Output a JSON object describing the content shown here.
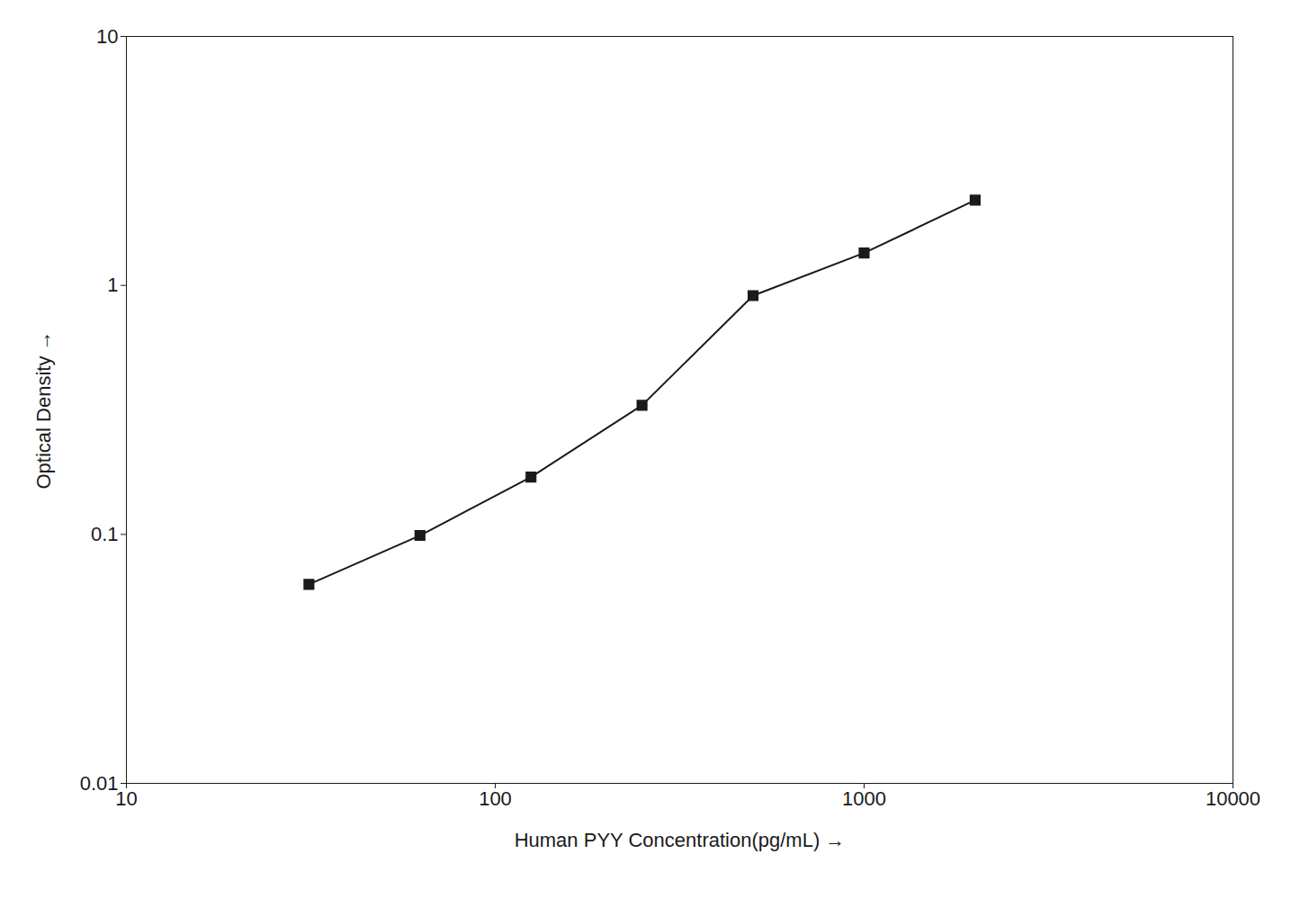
{
  "chart_data": {
    "type": "line",
    "x": [
      31.25,
      62.5,
      125,
      250,
      500,
      1000,
      2000
    ],
    "values": [
      0.063,
      0.099,
      0.17,
      0.33,
      0.91,
      1.35,
      2.2
    ],
    "xlabel": "Human PYY Concentration(pg/mL)",
    "ylabel": "Optical Density",
    "xlim": [
      10,
      10000
    ],
    "ylim": [
      0.01,
      10
    ],
    "xticks": [
      10,
      100,
      1000,
      10000
    ],
    "yticks": [
      0.01,
      0.1,
      1,
      10
    ],
    "log": true,
    "grid": false,
    "color": "#1a1a1a",
    "marker": "square"
  }
}
